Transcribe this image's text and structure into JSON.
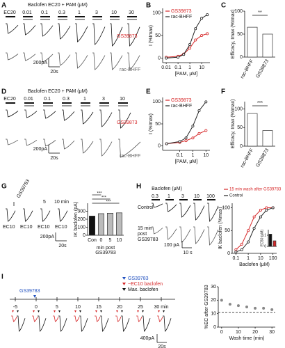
{
  "panel_letters": [
    "A",
    "B",
    "C",
    "D",
    "E",
    "F",
    "G",
    "H",
    "I"
  ],
  "A": {
    "title": "Baclofen EC20 + PAM (μM)",
    "concentrations": [
      "EC20",
      "0.01",
      "0.1",
      "0.3",
      "1",
      "3",
      "10",
      "30"
    ],
    "trace_labels": [
      "GS39873",
      "rac-BHFF"
    ],
    "scale": [
      "200pA",
      "20s"
    ]
  },
  "D": {
    "title": "Baclofen EC20 + PAM (μM)",
    "concentrations": [
      "EC20",
      "0.01",
      "0.1",
      "0.3",
      "1",
      "3",
      "10"
    ],
    "trace_labels": [
      "GS39873",
      "rac-BHFF"
    ],
    "scale": [
      "200pA",
      "20s"
    ]
  },
  "G": {
    "drug": "GS39783",
    "times": [
      "5",
      "10 min"
    ],
    "conditions": [
      "EC10",
      "EC10",
      "EC10",
      "EC10"
    ],
    "scale": [
      "200pA",
      "20s"
    ]
  },
  "H": {
    "title": "Baclofen (μM)",
    "concentrations": [
      "0.3",
      "1",
      "3",
      "10",
      "100"
    ],
    "control": "Control",
    "post": [
      "15 min",
      "post",
      "GS39783"
    ],
    "scale": [
      "100 pA",
      "10 s"
    ]
  },
  "I": {
    "drug": "GS39783",
    "legend": [
      "GS39783",
      "~EC10 baclofen",
      "Max. baclofen"
    ],
    "timeline": [
      "-5",
      "0",
      "5",
      "10",
      "15",
      "20",
      "25",
      "30 min"
    ],
    "scale": [
      "400pA",
      "20s"
    ]
  },
  "chart_data": [
    {
      "type": "line",
      "x_log": true,
      "xlabel": "[PAM, μM]",
      "ylabel": "I (%Imax)",
      "x": [
        0.01,
        0.1,
        0.3,
        1,
        3,
        10,
        30
      ],
      "series": [
        {
          "name": "GS39873",
          "color": "#d62728",
          "values": [
            2,
            4,
            9,
            22,
            40,
            50,
            54
          ]
        },
        {
          "name": "rac-BHFF",
          "color": "#222222",
          "values": [
            0,
            2,
            8,
            30,
            65,
            88,
            96
          ]
        }
      ],
      "xlim": [
        0.005,
        50
      ],
      "xticks": [
        0.01,
        0.1,
        1,
        10
      ],
      "ylim": [
        -10,
        110
      ],
      "yticks": [
        0,
        50,
        100
      ]
    },
    {
      "type": "bar",
      "categories": [
        "rac-BHFF",
        "GS39873"
      ],
      "values": [
        65,
        50
      ],
      "color": "#ffffff",
      "ylabel": "Efficacy, Imax (%Imax)",
      "ylim": [
        0,
        100
      ],
      "yticks": [
        0,
        50,
        100
      ],
      "annotation": "**"
    },
    {
      "type": "line",
      "x_log": true,
      "xlabel": "[PAM, μM]",
      "ylabel": "I (%Imax)",
      "x": [
        0.01,
        0.1,
        0.3,
        1,
        3,
        10
      ],
      "series": [
        {
          "name": "GS39873",
          "color": "#d62728",
          "values": [
            5,
            8,
            12,
            18,
            28,
            35
          ]
        },
        {
          "name": "rac-BHFF",
          "color": "#222222",
          "values": [
            5,
            10,
            18,
            45,
            80,
            100
          ]
        }
      ],
      "xlim": [
        0.005,
        20
      ],
      "xticks": [
        0.1,
        1,
        10
      ],
      "ylim": [
        -10,
        110
      ],
      "yticks": [
        0,
        50,
        100
      ]
    },
    {
      "type": "bar",
      "categories": [
        "rac-BHFF",
        "GS39873"
      ],
      "values": [
        88,
        42
      ],
      "color": "#ffffff",
      "ylabel": "Efficacy, Imax (%Imax)",
      "ylim": [
        0,
        120
      ],
      "yticks": [
        0,
        50,
        100
      ],
      "annotation": "***"
    },
    {
      "type": "bar",
      "categories": [
        "Con",
        "0",
        "5",
        "10"
      ],
      "values": [
        240,
        270,
        275,
        280
      ],
      "colors": [
        "#111111",
        "#bbbbbb",
        "#bbbbbb",
        "#bbbbbb"
      ],
      "ylabel": "IK baclofen (pA)",
      "xlabel": [
        "min post",
        "GS39783"
      ],
      "ylim": [
        0,
        400
      ],
      "yticks": [
        0,
        100,
        200,
        300
      ],
      "annotations": [
        "***",
        "***",
        "***"
      ]
    },
    {
      "type": "line",
      "x_log": true,
      "xlabel": "Baclofen (μM)",
      "ylabel": "IK baclofen (%max)",
      "x": [
        0.1,
        0.3,
        1,
        3,
        10,
        30,
        100
      ],
      "series": [
        {
          "name": "15 min wash after GS39783",
          "color": "#d62728",
          "values": [
            8,
            20,
            50,
            80,
            95,
            100,
            100
          ]
        },
        {
          "name": "Control",
          "color": "#222222",
          "values": [
            3,
            8,
            25,
            55,
            80,
            95,
            100
          ]
        }
      ],
      "xlim": [
        0.05,
        200
      ],
      "xticks": [
        0.1,
        1,
        10,
        100
      ],
      "ylim": [
        0,
        110
      ],
      "yticks": [
        0,
        50,
        100
      ]
    },
    {
      "type": "bar",
      "values": [
        1.1,
        0.5
      ],
      "colors": [
        "#111111",
        "#d62728"
      ],
      "ylabel": "EC50 (μM)",
      "ylim": [
        0,
        1.5
      ],
      "yticks": [
        0,
        1
      ]
    },
    {
      "type": "scatter",
      "x": [
        0,
        5,
        10,
        15,
        20,
        25,
        30
      ],
      "values": [
        20,
        17,
        16,
        15,
        14,
        14,
        13
      ],
      "color": "#888888",
      "xlabel": "Wash time (min)",
      "ylabel": "%EC after GS39783",
      "xlim": [
        -2,
        32
      ],
      "xticks": [
        0,
        10,
        20,
        30
      ],
      "ylim": [
        0,
        30
      ],
      "yticks": [
        0,
        10,
        20,
        30
      ],
      "reference_line": 11
    }
  ]
}
